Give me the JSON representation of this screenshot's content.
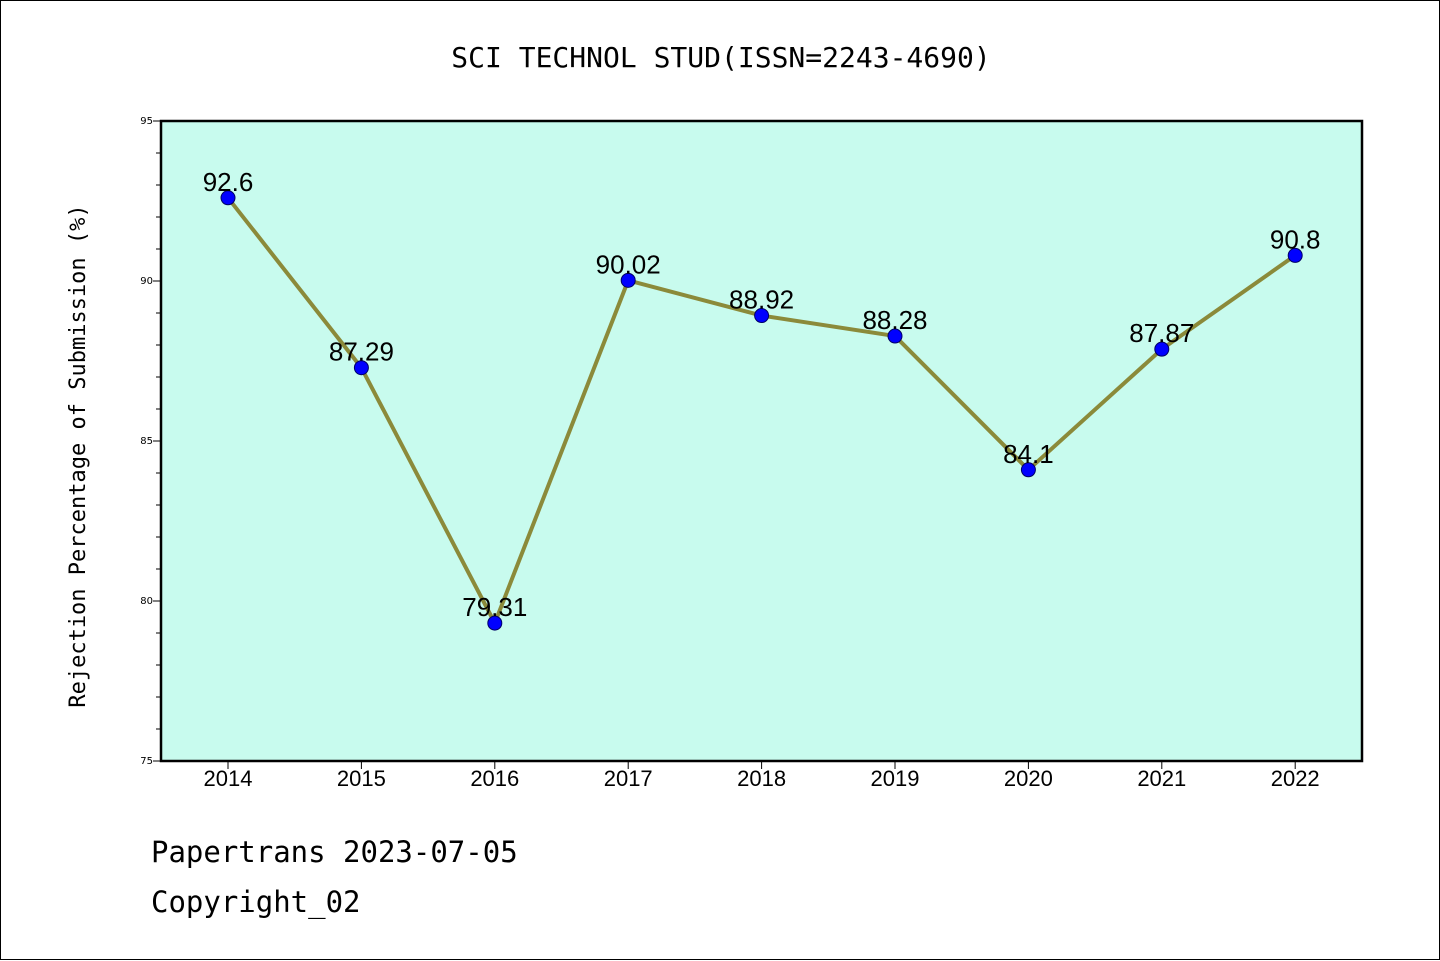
{
  "chart_data": {
    "type": "line",
    "title": "SCI TECHNOL STUD(ISSN=2243-4690)",
    "xlabel": "",
    "ylabel": "Rejection Percentage of Submission (%)",
    "categories": [
      "2014",
      "2015",
      "2016",
      "2017",
      "2018",
      "2019",
      "2020",
      "2021",
      "2022"
    ],
    "values": [
      92.6,
      87.29,
      79.31,
      90.02,
      88.92,
      88.28,
      84.1,
      87.87,
      90.8
    ],
    "data_labels": [
      "92.6",
      "87.29",
      "79.31",
      "90.02",
      "88.92",
      "88.28",
      "84.1",
      "87.87",
      "90.8"
    ],
    "ylim": [
      75,
      95
    ],
    "yticks": [
      75,
      80,
      85,
      90,
      95
    ],
    "grid": false,
    "legend": "none",
    "colors": {
      "plot_background": "#c8fbee",
      "line": "#8b8a3a",
      "marker": "#0000ff",
      "axes": "#000000"
    }
  },
  "footer": {
    "line1": "Papertrans 2023-07-05",
    "line2": "Copyright_02"
  }
}
